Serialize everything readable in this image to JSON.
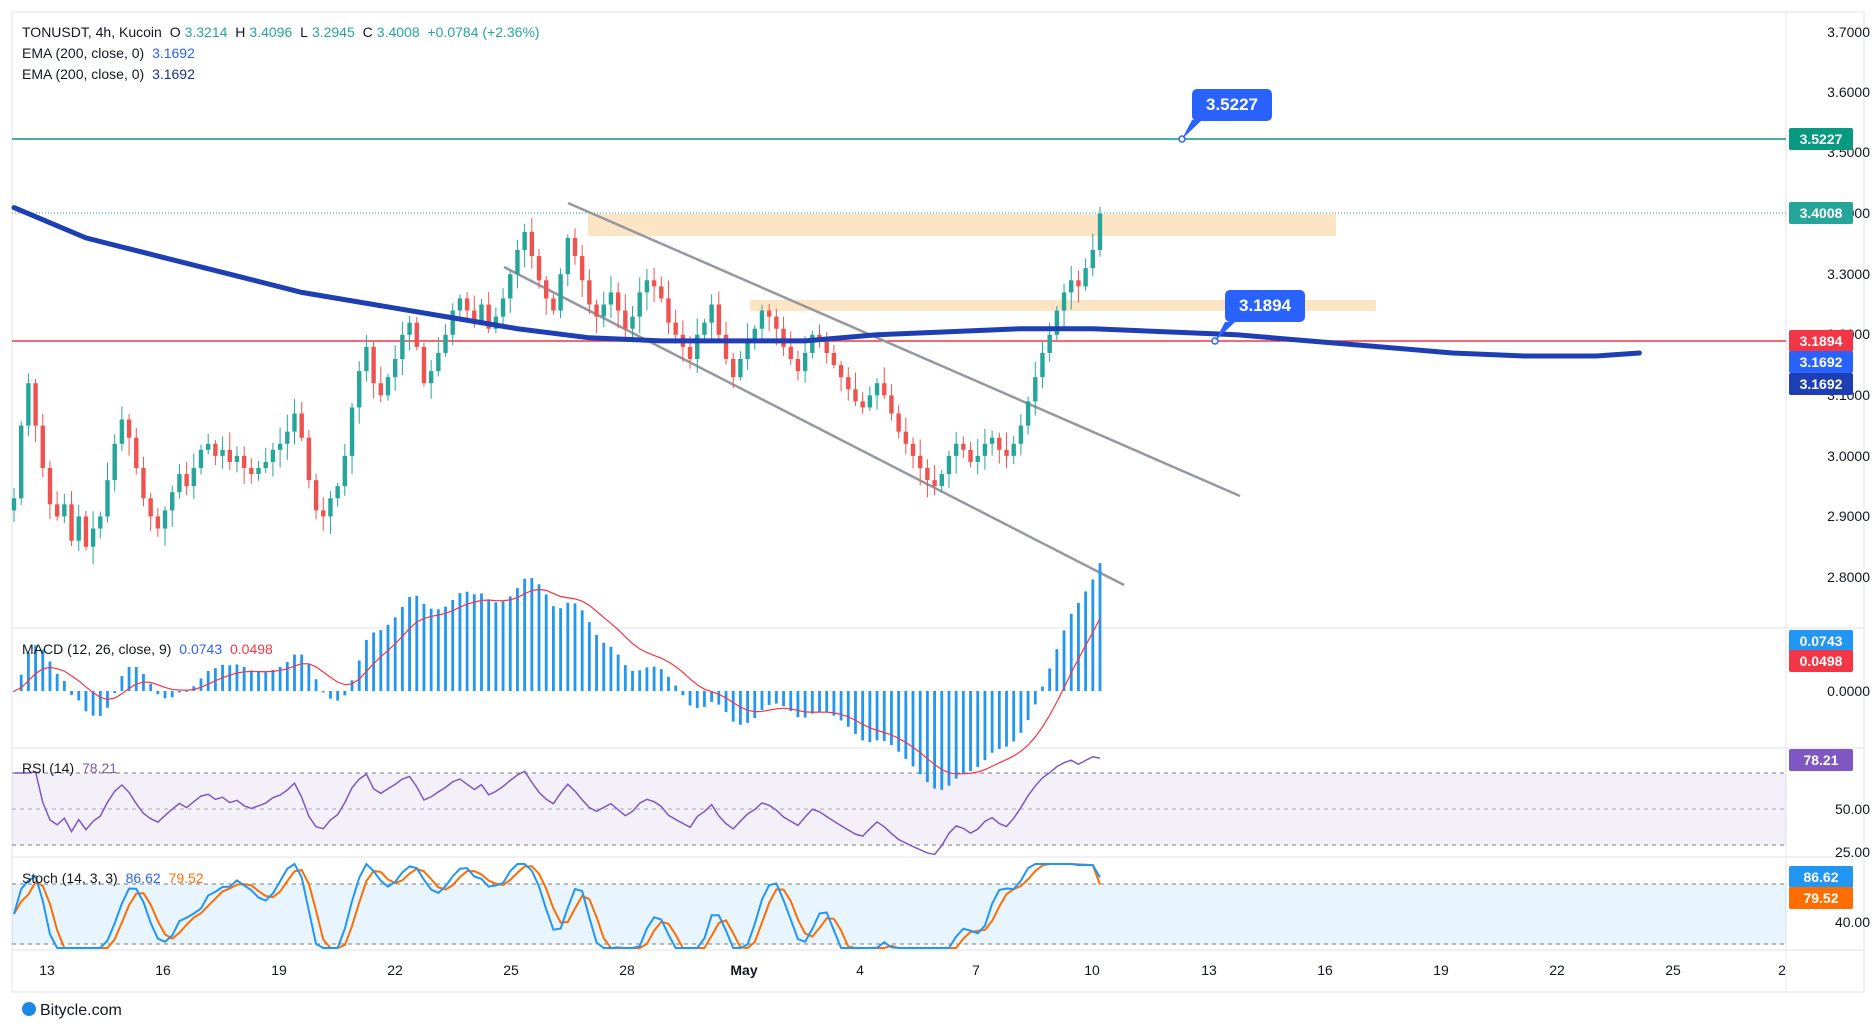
{
  "header": {
    "symbol": "TONUSDT, 4h, Kucoin",
    "o_label": "O",
    "o_value": "3.3214",
    "h_label": "H",
    "h_value": "3.4096",
    "l_label": "L",
    "l_value": "3.2945",
    "c_label": "C",
    "c_value": "3.4008",
    "change": "+0.0784 (+2.36%)",
    "ema1_label": "EMA (200, close, 0)",
    "ema1_value": "3.1692",
    "ema2_label": "EMA (200, close, 0)",
    "ema2_value": "3.1692"
  },
  "indicators": {
    "macd_label": "MACD (12, 26, close, 9)",
    "macd_value": "0.0743",
    "macd_signal": "0.0498",
    "rsi_label": "RSI (14)",
    "rsi_value": "78.21",
    "stoch_label": "Stoch (14, 3, 3)",
    "stoch_k": "86.62",
    "stoch_d": "79.52"
  },
  "price_axis": [
    "3.7000",
    "3.6000",
    "3.5000",
    "3.4000",
    "3.3000",
    "3.2000",
    "3.1000",
    "3.0000",
    "2.9000",
    "2.8000"
  ],
  "macd_axis": [
    "0.0000"
  ],
  "rsi_axis": [
    "50.00",
    "25.00"
  ],
  "stoch_axis": [
    "40.00"
  ],
  "price_tags": {
    "resistance": "3.5227",
    "last": "3.4008",
    "support": "3.1894",
    "ema1": "3.1692",
    "ema2": "3.1692",
    "macd": "0.0743",
    "signal": "0.0498",
    "rsi": "78.21",
    "stoch_k": "86.62",
    "stoch_d": "79.52"
  },
  "callouts": {
    "resistance": "3.5227",
    "support": "3.1894"
  },
  "date_axis": [
    "13",
    "16",
    "19",
    "22",
    "25",
    "28",
    "May",
    "4",
    "7",
    "10",
    "13",
    "16",
    "19",
    "22",
    "25",
    "2"
  ],
  "footer": "Bitycle.com",
  "colors": {
    "up": "#26a69a",
    "down": "#ef5350",
    "ema": "#1e3fb4",
    "resistance": "#089981",
    "support": "#f23645",
    "zone": "#fce5c4",
    "channel": "#9598a1",
    "macd": "#2196f3",
    "signal": "#f23645",
    "rsi": "#7e57c2",
    "stoch_k": "#2196f3",
    "stoch_d": "#ff6d00"
  },
  "chart_data": {
    "type": "candlestick",
    "symbol": "TONUSDT",
    "timeframe": "4h",
    "exchange": "Kucoin",
    "ylim": [
      2.74,
      3.76
    ],
    "x_tick_labels": [
      "13",
      "16",
      "19",
      "22",
      "25",
      "28",
      "May",
      "4",
      "7",
      "10",
      "13",
      "16",
      "19",
      "22",
      "25",
      "2"
    ],
    "last_close": 3.4008,
    "horizontal_levels": [
      {
        "name": "resistance",
        "value": 3.5227
      },
      {
        "name": "support",
        "value": 3.1894
      }
    ],
    "supply_zones": [
      {
        "y_low": 3.365,
        "y_high": 3.4
      },
      {
        "y_low": 3.235,
        "y_high": 3.255
      }
    ],
    "ema_200": {
      "last": 3.1692,
      "points": [
        [
          0,
          3.41
        ],
        [
          10,
          3.36
        ],
        [
          20,
          3.33
        ],
        [
          30,
          3.3
        ],
        [
          40,
          3.27
        ],
        [
          50,
          3.25
        ],
        [
          60,
          3.23
        ],
        [
          70,
          3.21
        ],
        [
          80,
          3.195
        ],
        [
          90,
          3.19
        ],
        [
          100,
          3.19
        ],
        [
          110,
          3.19
        ],
        [
          120,
          3.2
        ],
        [
          130,
          3.205
        ],
        [
          140,
          3.21
        ],
        [
          150,
          3.21
        ],
        [
          160,
          3.205
        ],
        [
          170,
          3.2
        ],
        [
          180,
          3.19
        ],
        [
          190,
          3.18
        ],
        [
          200,
          3.17
        ],
        [
          210,
          3.165
        ],
        [
          220,
          3.165
        ],
        [
          226,
          3.17
        ]
      ]
    },
    "closes": [
      2.93,
      3.05,
      3.12,
      3.05,
      2.98,
      2.92,
      2.9,
      2.92,
      2.86,
      2.9,
      2.85,
      2.88,
      2.9,
      2.96,
      3.02,
      3.06,
      3.03,
      2.98,
      2.93,
      2.9,
      2.88,
      2.91,
      2.94,
      2.97,
      2.95,
      2.98,
      3.01,
      3.02,
      3.0,
      3.01,
      2.99,
      3.0,
      2.98,
      2.97,
      2.98,
      2.99,
      3.01,
      3.02,
      3.04,
      3.07,
      3.03,
      2.96,
      2.91,
      2.9,
      2.93,
      2.95,
      3.0,
      3.08,
      3.14,
      3.18,
      3.12,
      3.1,
      3.13,
      3.16,
      3.2,
      3.22,
      3.18,
      3.12,
      3.14,
      3.17,
      3.2,
      3.24,
      3.26,
      3.24,
      3.22,
      3.25,
      3.21,
      3.23,
      3.26,
      3.3,
      3.34,
      3.37,
      3.33,
      3.29,
      3.26,
      3.24,
      3.3,
      3.36,
      3.33,
      3.29,
      3.25,
      3.23,
      3.25,
      3.27,
      3.24,
      3.21,
      3.23,
      3.27,
      3.29,
      3.28,
      3.26,
      3.22,
      3.2,
      3.18,
      3.16,
      3.2,
      3.22,
      3.25,
      3.2,
      3.16,
      3.13,
      3.16,
      3.19,
      3.21,
      3.24,
      3.23,
      3.21,
      3.18,
      3.16,
      3.14,
      3.17,
      3.2,
      3.19,
      3.17,
      3.15,
      3.13,
      3.11,
      3.09,
      3.08,
      3.1,
      3.12,
      3.1,
      3.07,
      3.04,
      3.02,
      3.0,
      2.98,
      2.96,
      2.95,
      2.97,
      3.0,
      3.02,
      3.01,
      2.99,
      3.0,
      3.02,
      3.03,
      3.01,
      3.0,
      3.02,
      3.05,
      3.09,
      3.13,
      3.17,
      3.2,
      3.24,
      3.27,
      3.29,
      3.28,
      3.31,
      3.34,
      3.4
    ],
    "macd": {
      "value": 0.0743,
      "signal": 0.0498
    },
    "rsi": {
      "value": 78.21,
      "levels": [
        70,
        50,
        30
      ]
    },
    "stoch": {
      "k": 86.62,
      "d": 79.52,
      "levels": [
        80,
        20
      ]
    }
  }
}
